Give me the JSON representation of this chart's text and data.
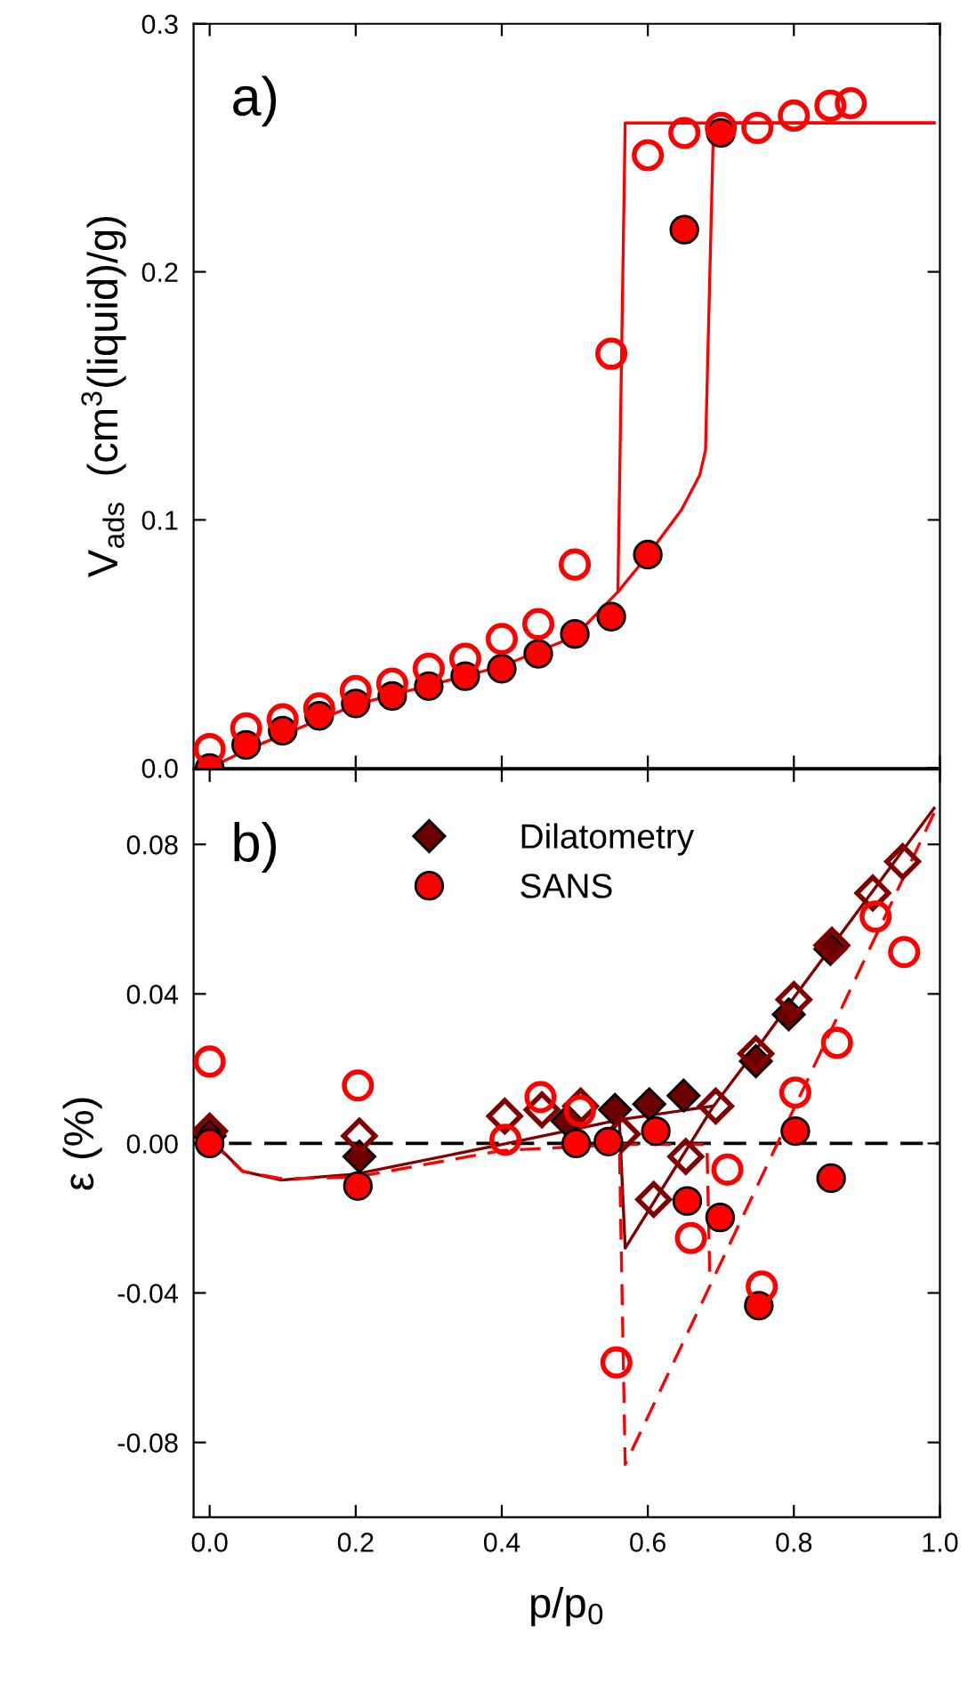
{
  "chart_data": [
    {
      "type": "scatter",
      "ylabel": "V$_{ads}$  (cm$^{3}$(liquid)/g)",
      "xlim": [
        -0.022,
        1.0
      ],
      "xticks": [
        0.0,
        0.2,
        0.4,
        0.6,
        0.8,
        1.0
      ],
      "ylim": [
        0,
        0.3
      ],
      "yticks": [
        {
          "value": 0,
          "label": "0.0"
        },
        0.1,
        0.2,
        0.3
      ],
      "tick_labels": "y",
      "grid": false,
      "legend": false,
      "annotations": [
        "a)"
      ],
      "series": [
        {
          "type": "line",
          "color": "#ff0000",
          "line_style": "solid",
          "marker": "none",
          "x": [
            0,
            0.053,
            0.2,
            0.4,
            0.5,
            0.559,
            0.598,
            0.646,
            0.671,
            0.679,
            0.69,
            0.992
          ],
          "values": [
            0,
            0.0076,
            0.0255,
            0.041,
            0.053,
            0.071,
            0.085,
            0.104,
            0.118,
            0.128,
            0.26,
            0.26
          ]
        },
        {
          "type": "line",
          "color": "#ff0000",
          "line_style": "solid",
          "marker": "none",
          "x": [
            0.992,
            0.569,
            0.559
          ],
          "values": [
            0.26,
            0.26,
            0.071
          ]
        },
        {
          "color": "#ff0000",
          "marker": "circle",
          "x": [
            0,
            0.05,
            0.1,
            0.15,
            0.2,
            0.25,
            0.3,
            0.35,
            0.4,
            0.45,
            0.5,
            0.55,
            0.6,
            0.65,
            0.7
          ],
          "values": [
            0,
            0.0093,
            0.015,
            0.021,
            0.026,
            0.029,
            0.033,
            0.037,
            0.04,
            0.046,
            0.054,
            0.061,
            0.086,
            0.217,
            0.256
          ]
        },
        {
          "color": "#ff0000",
          "marker": "circle",
          "x": [
            0,
            0.05,
            0.1,
            0.15,
            0.2,
            0.25,
            0.3,
            0.35,
            0.4,
            0.45,
            0.5,
            0.55,
            0.6,
            0.65,
            0.7,
            0.75,
            0.8,
            0.85,
            0.878
          ],
          "values": [
            0.0076,
            0.016,
            0.0196,
            0.024,
            0.031,
            0.034,
            0.04,
            0.044,
            0.052,
            0.058,
            0.082,
            0.167,
            0.247,
            0.256,
            0.258,
            0.258,
            0.263,
            0.267,
            0.268
          ]
        }
      ]
    },
    {
      "type": "scatter",
      "xlabel": "p/p$_{0}$",
      "ylabel": "ε (%)",
      "xlim": [
        -0.022,
        1.0
      ],
      "xticks": [
        {
          "value": 0,
          "label": "0.0"
        },
        0.2,
        0.4,
        0.6,
        0.8,
        {
          "value": 1,
          "label": "1.0"
        }
      ],
      "ylim": [
        -0.1,
        0.1
      ],
      "yticks": [
        -0.08,
        -0.04,
        {
          "value": 0,
          "label": "0.00"
        },
        0.04,
        0.08
      ],
      "grid": false,
      "legend": "top",
      "annotations": [
        "b)"
      ],
      "ref_lines": [
        {
          "axis": "y",
          "value": 0,
          "color": "#000000",
          "line_style": "dashed"
        }
      ],
      "series": [
        {
          "type": "line",
          "color": "#800000",
          "line_style": "solid",
          "marker": "none",
          "x": [
            0,
            0.045,
            0.098,
            0.2,
            0.4,
            0.561,
            0.671,
            0.69,
            0.748,
            0.8,
            0.992
          ],
          "values": [
            0.0013,
            -0.0074,
            -0.0098,
            -0.0082,
            -0.0003,
            0.0063,
            0.0095,
            0.01,
            0.025,
            0.039,
            0.0897
          ]
        },
        {
          "type": "line",
          "color": "#800000",
          "line_style": "solid",
          "marker": "none",
          "x": [
            0.69,
            0.569,
            0.561
          ],
          "values": [
            0.01,
            -0.028,
            0.0063
          ]
        },
        {
          "type": "line",
          "color": "#ff0000",
          "line_style": "dashed",
          "marker": "none",
          "x": [
            0,
            0.045,
            0.1,
            0.2,
            0.4,
            0.561,
            0.681,
            0.685
          ],
          "values": [
            0.001,
            -0.0075,
            -0.0095,
            -0.009,
            -0.0019,
            -0.0003,
            -0.0003,
            -0.037
          ]
        },
        {
          "type": "line",
          "color": "#ff0000",
          "line_style": "dashed",
          "marker": "none",
          "x": [
            0.992,
            0.569,
            0.561
          ],
          "values": [
            0.0884,
            -0.0859,
            -0.0003
          ]
        },
        {
          "name": "Dilatometry",
          "color": "#6b0000",
          "marker": "diamond",
          "x": [
            0,
            0.205,
            0.49,
            0.555,
            0.602,
            0.649,
            0.748,
            0.793,
            0.85
          ],
          "values": [
            0.002,
            -0.0035,
            0.006,
            0.009,
            0.0105,
            0.0128,
            0.022,
            0.0345,
            0.052
          ]
        },
        {
          "color": "#800000",
          "marker": "diamond",
          "x": [
            0,
            0.205,
            0.404,
            0.455,
            0.508,
            0.565,
            0.608,
            0.652,
            0.693,
            0.748,
            0.8,
            0.852,
            0.908,
            0.949
          ],
          "values": [
            0.0033,
            0.002,
            0.0073,
            0.009,
            0.01,
            0.0025,
            -0.015,
            -0.0035,
            0.01,
            0.024,
            0.0385,
            0.053,
            0.067,
            0.0754
          ]
        },
        {
          "name": "SANS",
          "color": "#ff0000",
          "marker": "circle",
          "x": [
            0,
            0.203,
            0.502,
            0.546,
            0.611,
            0.654,
            0.699,
            0.752,
            0.802,
            0.851
          ],
          "values": [
            0,
            -0.0114,
            0,
            0.0005,
            0.0033,
            -0.0154,
            -0.0198,
            -0.0434,
            0.0033,
            -0.0093
          ]
        },
        {
          "color": "#ff0000",
          "marker": "circle",
          "x": [
            0,
            0.203,
            0.405,
            0.453,
            0.507,
            0.557,
            0.659,
            0.709,
            0.756,
            0.802,
            0.859,
            0.912,
            0.951
          ],
          "values": [
            0.0219,
            0.0155,
            0.001,
            0.0124,
            0.0087,
            -0.0586,
            -0.0253,
            -0.007,
            -0.0383,
            0.0136,
            0.0269,
            0.0607,
            0.0512
          ]
        }
      ]
    }
  ]
}
